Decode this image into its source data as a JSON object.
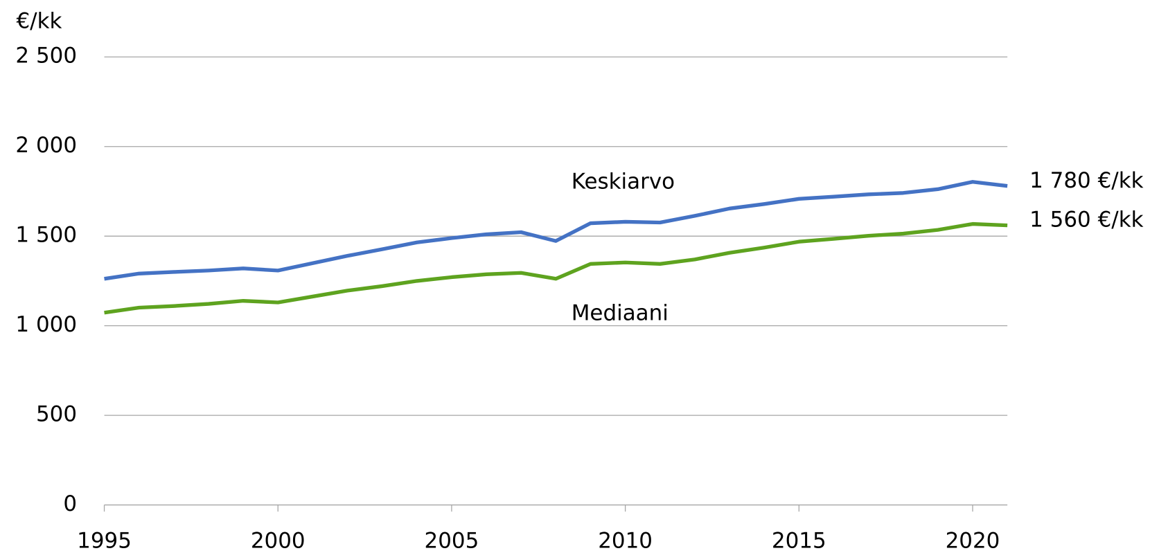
{
  "chart_data": {
    "type": "line",
    "y_label": "€/kk",
    "x": [
      1995,
      1996,
      1997,
      1998,
      1999,
      2000,
      2001,
      2002,
      2003,
      2004,
      2005,
      2006,
      2007,
      2008,
      2009,
      2010,
      2011,
      2012,
      2013,
      2014,
      2015,
      2016,
      2017,
      2018,
      2019,
      2020,
      2021
    ],
    "series": [
      {
        "name": "Keskiarvo",
        "color": "#4472c4",
        "values": [
          1262,
          1291,
          1300,
          1308,
          1320,
          1308,
          1349,
          1390,
          1427,
          1465,
          1489,
          1510,
          1522,
          1473,
          1572,
          1580,
          1576,
          1613,
          1654,
          1679,
          1708,
          1720,
          1733,
          1741,
          1762,
          1803,
          1780
        ],
        "value_labels": [
          null,
          null,
          null,
          null,
          null,
          null,
          null,
          null,
          null,
          null,
          null,
          null,
          null,
          null,
          null,
          null,
          null,
          null,
          null,
          null,
          null,
          null,
          null,
          null,
          null,
          null,
          "1 780 €/kk"
        ]
      },
      {
        "name": "Mediaani",
        "color": "#5ea31f",
        "values": [
          1073,
          1101,
          1110,
          1122,
          1139,
          1130,
          1163,
          1196,
          1221,
          1250,
          1271,
          1287,
          1295,
          1262,
          1345,
          1353,
          1345,
          1370,
          1407,
          1436,
          1469,
          1485,
          1502,
          1514,
          1535,
          1568,
          1560
        ],
        "value_labels": [
          null,
          null,
          null,
          null,
          null,
          null,
          null,
          null,
          null,
          null,
          null,
          null,
          null,
          null,
          null,
          null,
          null,
          null,
          null,
          null,
          null,
          null,
          null,
          null,
          null,
          null,
          "1 560 €/kk"
        ]
      }
    ],
    "xlim": [
      1995,
      2021
    ],
    "xticks": [
      1995,
      2000,
      2005,
      2010,
      2015,
      2020
    ],
    "ylim": [
      0,
      2500
    ],
    "yticks": [
      0,
      500,
      {
        "value": 1000,
        "label": "1 000"
      },
      {
        "value": 1500,
        "label": "1 500"
      },
      {
        "value": 2000,
        "label": "2 000"
      },
      {
        "value": 2500,
        "label": "2 500"
      }
    ],
    "grid": true
  }
}
